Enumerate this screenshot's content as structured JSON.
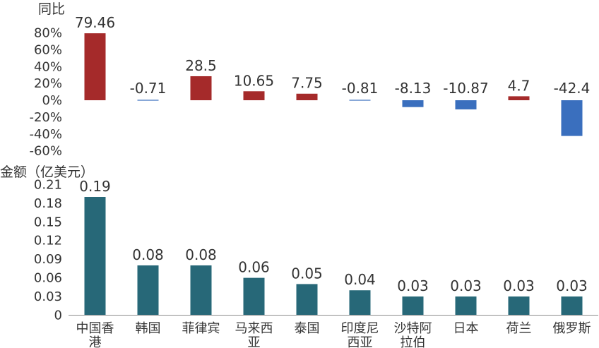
{
  "chart_data": [
    {
      "type": "bar",
      "ylabel": "同比",
      "ytick_labels": [
        "80%",
        "60%",
        "40%",
        "20%",
        "0%",
        "-20%",
        "-40%",
        "-60%"
      ],
      "categories": [
        "中国香港",
        "韩国",
        "菲律宾",
        "马来西亚",
        "泰国",
        "印度尼西亚",
        "沙特阿拉伯",
        "日本",
        "荷兰",
        "俄罗斯"
      ],
      "values": [
        79.46,
        -0.71,
        28.5,
        10.65,
        7.75,
        -0.81,
        -8.13,
        -10.87,
        4.7,
        -42.4
      ],
      "value_labels": [
        "79.46",
        "-0.71",
        "28.5",
        "10.65",
        "7.75",
        "-0.81",
        "-8.13",
        "-10.87",
        "4.7",
        "-42.4"
      ],
      "ylim": [
        -60,
        80
      ],
      "colors": {
        "positive": "#A52A2A",
        "negative": "#3A6FBE"
      },
      "grid": false
    },
    {
      "type": "bar",
      "ylabel": "金额（亿美元）",
      "ytick_labels": [
        "0.21",
        "0.18",
        "0.15",
        "0.12",
        "0.09",
        "0.06",
        "0.03",
        "0"
      ],
      "categories": [
        "中国香港",
        "韩国",
        "菲律宾",
        "马来西亚",
        "泰国",
        "印度尼西亚",
        "沙特阿拉伯",
        "日本",
        "荷兰",
        "俄罗斯"
      ],
      "category_lines": [
        [
          "中国香",
          "港"
        ],
        [
          "韩国"
        ],
        [
          "菲律宾"
        ],
        [
          "马来西",
          "亚"
        ],
        [
          "泰国"
        ],
        [
          "印度尼",
          "西亚"
        ],
        [
          "沙特阿",
          "拉伯"
        ],
        [
          "日本"
        ],
        [
          "荷兰"
        ],
        [
          "俄罗斯"
        ]
      ],
      "values": [
        0.19,
        0.08,
        0.08,
        0.06,
        0.05,
        0.04,
        0.03,
        0.03,
        0.03,
        0.03
      ],
      "value_labels": [
        "0.19",
        "0.08",
        "0.08",
        "0.06",
        "0.05",
        "0.04",
        "0.03",
        "0.03",
        "0.03",
        "0.03"
      ],
      "ylim": [
        0,
        0.21
      ],
      "colors": {
        "bar": "#276878",
        "axis": "#8C8C8C"
      },
      "grid": false
    }
  ]
}
